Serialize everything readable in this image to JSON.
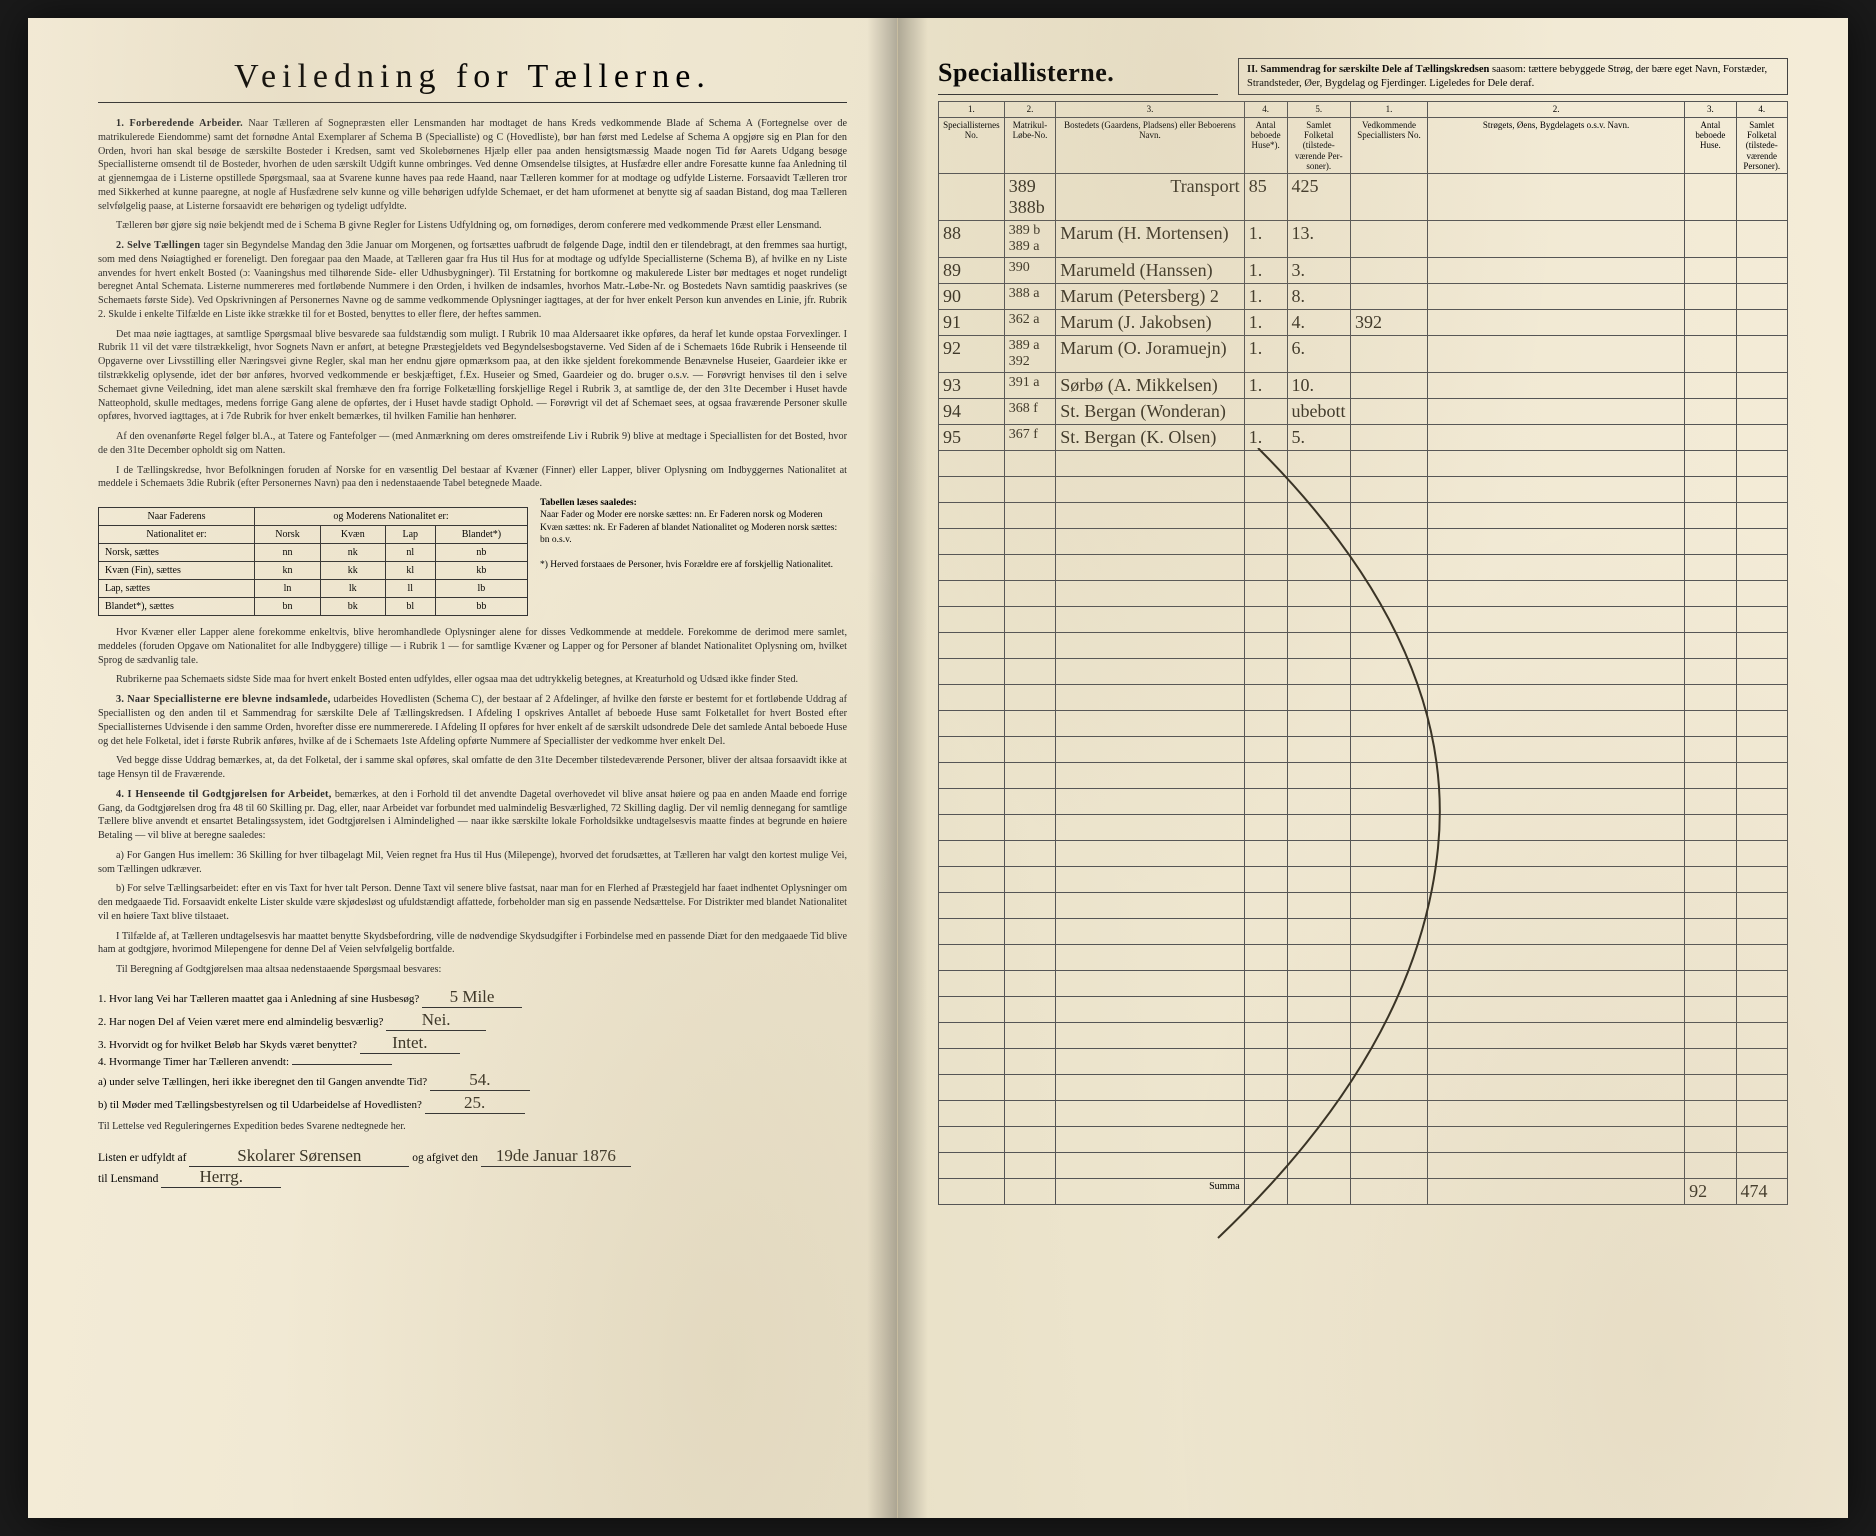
{
  "left": {
    "title": "Veiledning for Tællerne.",
    "sections": [
      {
        "num": "1.",
        "head": "Forberedende Arbeider.",
        "text": "Naar Tælleren af Sognepræsten eller Lensmanden har modtaget de hans Kreds vedkommende Blade af Schema A (Fortegnelse over de matrikulerede Eiendomme) samt det fornødne Antal Exemplarer af Schema B (Specialliste) og C (Hovedliste), bør han først med Ledelse af Schema A opgjøre sig en Plan for den Orden, hvori han skal besøge de særskilte Bosteder i Kredsen, samt ved Skolebørnenes Hjælp eller paa anden hensigtsmæssig Maade nogen Tid før Aarets Udgang besøge Speciallisterne omsendt til de Bosteder, hvorhen de uden særskilt Udgift kunne ombringes. Ved denne Omsendelse tilsigtes, at Husfædre eller andre Foresatte kunne faa Anledning til at gjennemgaa de i Listerne opstillede Spørgsmaal, saa at Svarene kunne haves paa rede Haand, naar Tælleren kommer for at modtage og udfylde Listerne. Forsaavidt Tælleren tror med Sikkerhed at kunne paaregne, at nogle af Husfædrene selv kunne og ville behørigen udfylde Schemaet, er det ham uformenet at benytte sig af saadan Bistand, dog maa Tælleren selvfølgelig paase, at Listerne forsaavidt ere behørigen og tydeligt udfyldte."
      },
      {
        "num": "",
        "head": "",
        "text": "Tælleren bør gjøre sig nøie bekjendt med de i Schema B givne Regler for Listens Udfyldning og, om fornødiges, derom conferere med vedkommende Præst eller Lensmand."
      },
      {
        "num": "2.",
        "head": "Selve Tællingen",
        "text": "tager sin Begyndelse Mandag den 3die Januar om Morgenen, og fortsættes uafbrudt de følgende Dage, indtil den er tilendebragt, at den fremmes saa hurtigt, som med dens Nøiagtighed er foreneligt. Den foregaar paa den Maade, at Tælleren gaar fra Hus til Hus for at modtage og udfylde Speciallisterne (Schema B), af hvilke en ny Liste anvendes for hvert enkelt Bosted (ɔ: Vaaningshus med tilhørende Side- eller Udhusbygninger). Til Erstatning for bortkomne og makulerede Lister bør medtages et noget rundeligt beregnet Antal Schemata. Listerne nummereres med fortløbende Nummere i den Orden, i hvilken de indsamles, hvorhos Matr.-Løbe-Nr. og Bostedets Navn samtidig paaskrives (se Schemaets første Side). Ved Opskrivningen af Personernes Navne og de samme vedkommende Oplysninger iagttages, at der for hver enkelt Person kun anvendes en Linie, jfr. Rubrik 2. Skulde i enkelte Tilfælde en Liste ikke strække til for et Bosted, benyttes to eller flere, der heftes sammen."
      },
      {
        "num": "",
        "head": "",
        "text": "Det maa nøie iagttages, at samtlige Spørgsmaal blive besvarede saa fuldstændig som muligt. I Rubrik 10 maa Aldersaaret ikke opføres, da heraf let kunde opstaa Forvexlinger. I Rubrik 11 vil det være tilstrækkeligt, hvor Sognets Navn er anført, at betegne Præstegjeldets ved Begyndelsesbogstaverne. Ved Siden af de i Schemaets 16de Rubrik i Henseende til Opgaverne over Livsstilling eller Næringsvei givne Regler, skal man her endnu gjøre opmærksom paa, at den ikke sjeldent forekommende Benævnelse Huseier, Gaardeier ikke er tilstrækkelig oplysende, idet der bør anføres, hvorved vedkommende er beskjæftiget, f.Ex. Huseier og Smed, Gaardeier og do. bruger o.s.v. — Forøvrigt henvises til den i selve Schemaet givne Veiledning, idet man alene særskilt skal fremhæve den fra forrige Folketælling forskjellige Regel i Rubrik 3, at samtlige de, der den 31te December i Huset havde Natteophold, skulle medtages, medens forrige Gang alene de opførtes, der i Huset havde stadigt Ophold. — Forøvrigt vil det af Schemaet sees, at ogsaa fraværende Personer skulle opføres, hvorved iagttages, at i 7de Rubrik for hver enkelt bemærkes, til hvilken Familie han henhører."
      },
      {
        "num": "",
        "head": "",
        "text": "Af den ovenanførte Regel følger bl.A., at Tatere og Fantefolger — (med Anmærkning om deres omstreifende Liv i Rubrik 9) blive at medtage i Speciallisten for det Bosted, hvor de den 31te December opholdt sig om Natten."
      },
      {
        "num": "",
        "head": "",
        "text": "I de Tællingskredse, hvor Befolkningen foruden af Norske for en væsentlig Del bestaar af Kvæner (Finner) eller Lapper, bliver Oplysning om Indbyggernes Nationalitet at meddele i Schemaets 3die Rubrik (efter Personernes Navn) paa den i nedenstaaende Tabel betegnede Maade."
      }
    ],
    "nat_table": {
      "head1": "Naar Faderens",
      "head2": "og Moderens Nationalitet er:",
      "cols": [
        "Nationalitet er:",
        "Norsk",
        "Kvæn",
        "Lap",
        "Blandet*)"
      ],
      "rows": [
        [
          "Norsk, sættes",
          "nn",
          "nk",
          "nl",
          "nb"
        ],
        [
          "Kvæn (Fin), sættes",
          "kn",
          "kk",
          "kl",
          "kb"
        ],
        [
          "Lap, sættes",
          "ln",
          "lk",
          "ll",
          "lb"
        ],
        [
          "Blandet*), sættes",
          "bn",
          "bk",
          "bl",
          "bb"
        ]
      ],
      "side_title": "Tabellen læses saaledes:",
      "side_text": "Naar Fader og Moder ere norske sættes: nn. Er Faderen norsk og Moderen Kvæn sættes: nk. Er Faderen af blandet Nationalitet og Moderen norsk sættes: bn o.s.v.",
      "footnote": "*) Herved forstaaes de Personer, hvis For​ældre ere af for­skjellig Nationalitet."
    },
    "after_table": [
      "Hvor Kvæner eller Lapper alene forekomme enkeltvis, blive heromhandlede Oplysninger alene for disses Vedkommende at meddele. Forekomme de derimod mere samlet, meddeles (foruden Opgave om Nationalitet for alle Indbyggere) tillige — i Rubrik 1 — for samtlige Kvæner og Lapper og for Personer af blandet Nationalitet Oplysning om, hvilket Sprog de sædvanlig tale.",
      "Rubrikerne paa Schemaets sidste Side maa for hvert enkelt Bosted enten udfyldes, eller ogsaa maa det udtrykkelig betegnes, at Kreaturhold og Udsæd ikke finder Sted."
    ],
    "section3": {
      "num": "3.",
      "head": "Naar Speciallisterne ere blevne indsamlede,",
      "text": "udarbeides Hovedlisten (Schema C), der bestaar af 2 Afdelinger, af hvilke den første er bestemt for et fortløbende Uddrag af Speciallisten og den anden til et Sammendrag for særskilte Dele af Tællingskredsen. I Afdeling I opskrives Antallet af beboede Huse samt Folketallet for hvert Bosted efter Speciallisternes Udvisende i den samme Orden, hvorefter disse ere nummererede. I Afdeling II opføres for hver enkelt af de særskilt udsondrede Dele det samlede Antal beboede Huse og det hele Folketal, idet i første Rubrik anføres, hvilke af de i Schemaets 1ste Afdeling opførte Nummere af Speciallister der vedkomme hver enkelt Del."
    },
    "extra1": "Ved begge disse Uddrag bemærkes, at, da det Folketal, der i samme skal opføres, skal omfatte de den 31te December tilstedeværende Personer, bliver der altsaa forsaavidt ikke at tage Hensyn til de Fraværende.",
    "section4": {
      "num": "4.",
      "head": "I Henseende til Godtgjørelsen for Arbeidet,",
      "text": "bemærkes, at den i Forhold til det anvendte Dagetal overhovedet vil blive ansat høiere og paa en anden Maade end forrige Gang, da Godtgjørelsen drog fra 48 til 60 Skilling pr. Dag, eller, naar Arbeidet var forbundet med ualmindelig Besværlighed, 72 Skilling daglig. Der vil nemlig dennegang for samtlige Tællere blive anvendt et ensartet Betalingssystem, idet Godtgjørelsen i Almindelighed — naar ikke særskilte lokale Forholdsikke undtagelsesvis maatte findes at begrunde en høiere Betaling — vil blive at beregne saaledes:"
    },
    "payA": "a) For Gangen Hus imellem: 36 Skilling for hver tilbagelagt Mil, Veien regnet fra Hus til Hus (Mile­penge), hvorved det forudsættes, at Tælleren har valgt den kortest mulige Vei, som Tællingen udkræver.",
    "payB": "b) For selve Tællingsarbeidet: efter en vis Taxt for hver talt Person. Denne Taxt vil senere blive fastsat, naar man for en Flerhed af Præstegjeld har faaet indhentet Oplysninger om den medgaaede Tid. Forsaavidt enkelte Lister skulde være skjødesløst og ufuldstændigt affattede, forbeholder man sig en passende Nedsættelse. For Distrikter med blandet Nationalitet vil en høiere Taxt blive tilstaaet.",
    "extra2": "I Tilfælde af, at Tælleren undtagelsesvis har maattet benytte Skydsbefordring, ville de nødvendige Skydsudgifter i Forbindelse med en passende Diæt for den medgaaede Tid blive ham at godtgjøre, hvorimod Milepengene for denne Del af Veien selvfølgelig bortfalde.",
    "qintro": "Til Beregning af Godtgjørelsen maa altsaa nedenstaaende Spørgsmaal besvares:",
    "questions": [
      {
        "n": "1.",
        "q": "Hvor lang Vei har Tælleren maattet gaa i Anledning af sine Husbesøg?",
        "a": "5 Mile"
      },
      {
        "n": "2.",
        "q": "Har nogen Del af Veien været mere end almindelig besværlig?",
        "a": "Nei."
      },
      {
        "n": "3.",
        "q": "Hvorvidt og for hvilket Beløb har Skyds været benyttet?",
        "a": "Intet."
      },
      {
        "n": "4.",
        "q": "Hvormange Timer har Tælleren anvendt:",
        "a": ""
      },
      {
        "n": "",
        "q": "a) under selve Tællingen, heri ikke iberegnet den til Gangen anvendte Tid?",
        "a": "54."
      },
      {
        "n": "",
        "q": "b) til Møder med Tællingsbestyrelsen og til Udarbeidelse af Hovedlisten?",
        "a": "25."
      }
    ],
    "footer_intro": "Til Lettelse ved Reguleringernes Expedition bedes Svarene nedtegnede her.",
    "sign": {
      "pre": "Listen er udfyldt af",
      "name": "Skolarer Sørensen",
      "mid": "og afgivet den",
      "date": "19de Januar 1876",
      "to": "til Lensmand",
      "lens": "Herrg."
    }
  },
  "right": {
    "heading_left": "Speciallisterne.",
    "heading_right_bold": "II. Sammendrag for særskilte Dele af Tællingskredsen",
    "heading_right_text": " saasom: tættere bebyggede Strøg, der bære eget Navn, Forstæder, Strandsteder, Øer, Bygdelag og Fjerdinger. Ligeledes for Dele deraf.",
    "cols_left_num": [
      "1.",
      "2.",
      "3.",
      "4.",
      "5."
    ],
    "cols_left": [
      "Speciallisternes No.",
      "Matrikul-Løbe-No.",
      "Bostedets (Gaardens, Pladsens) eller Beboerens Navn.",
      "Antal beboede Huse*).",
      "Samlet Folketal (tilstede­værende Per­soner)."
    ],
    "cols_right_num": [
      "1.",
      "2.",
      "3.",
      "4."
    ],
    "cols_right": [
      "Vedkommende Speciallisters No.",
      "Strøgets, Øens, Bygdelagets o.s.v. Navn.",
      "Antal beboede Huse.",
      "Samlet Folketal (tilstede­vær­ende Per­soner)."
    ],
    "transport": {
      "label": "Transport",
      "huse": "85",
      "folk": "425"
    },
    "rows": [
      {
        "no": "88",
        "mat": "389 b\n389 a",
        "navn": "Marum (H. Mortensen)",
        "huse": "1.",
        "folk": "13."
      },
      {
        "no": "89",
        "mat": "390",
        "navn": "Marumeld (Hanssen)",
        "huse": "1.",
        "folk": "3."
      },
      {
        "no": "90",
        "mat": "388 a",
        "navn": "Marum (Petersberg) 2",
        "huse": "1.",
        "folk": "8."
      },
      {
        "no": "91",
        "mat": "362 a",
        "navn": "Marum (J. Jakobsen)",
        "huse": "1.",
        "folk": "4.",
        "note": "392"
      },
      {
        "no": "92",
        "mat": "389 a\n392",
        "navn": "Marum (O. Joramuejn)",
        "huse": "1.",
        "folk": "6."
      },
      {
        "no": "93",
        "mat": "391 a",
        "navn": "Sørbø (A. Mikkelsen)",
        "huse": "1.",
        "folk": "10."
      },
      {
        "no": "94",
        "mat": "368 f",
        "navn": "St. Bergan (Wonderan)",
        "huse": "",
        "folk": "ubebott"
      },
      {
        "no": "95",
        "mat": "367 f",
        "navn": "St. Bergan (K. Olsen)",
        "huse": "1.",
        "folk": "5."
      }
    ],
    "summa": {
      "label": "Summa",
      "huse": "92",
      "folk": "474"
    }
  }
}
